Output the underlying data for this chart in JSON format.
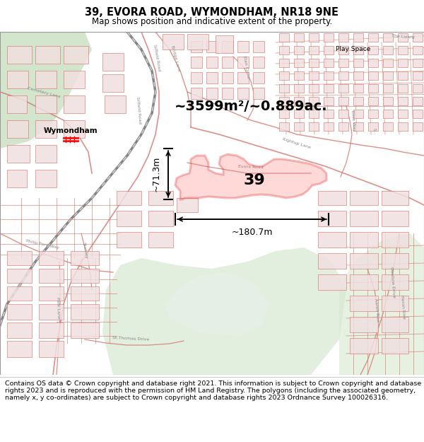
{
  "title": "39, EVORA ROAD, WYMONDHAM, NR18 9NE",
  "subtitle": "Map shows position and indicative extent of the property.",
  "title_fontsize": 10.5,
  "subtitle_fontsize": 8.5,
  "area_label": "~3599m²/~0.889ac.",
  "dim_width": "~180.7m",
  "dim_height": "~71.3m",
  "footer_text": "Contains OS data © Crown copyright and database right 2021. This information is subject to Crown copyright and database rights 2023 and is reproduced with the permission of HM Land Registry. The polygons (including the associated geometry, namely x, y co-ordinates) are subject to Crown copyright and database rights 2023 Ordnance Survey 100026316.",
  "footer_fontsize": 6.8,
  "street_color": "#d4756b",
  "building_face": "#f0e0e0",
  "building_edge": "#d4756b",
  "green_color": "#d6e8d0",
  "green2_color": "#c8dfc0",
  "rail_color": "#666666",
  "bg_color": "#f9f6f4",
  "property_edge": "#dd0000",
  "property_fill": "#ff6666",
  "property_fill_alpha": 0.25,
  "label_color": "#000000",
  "station_label": "Wymondham",
  "play_space_label": "Play Space",
  "road_labels": [
    "Cemetery Lane",
    "Silfield Road",
    "Bridge Lane",
    "Rightup Lane",
    "Elan Close",
    "Elise Way",
    "Philip Ford Way",
    "St.Thomas Drive",
    "Swallow Drive",
    "Aaron Rise",
    "Stanley",
    "Park Lane",
    "The Lizard"
  ],
  "title_border_color": "#cccccc"
}
